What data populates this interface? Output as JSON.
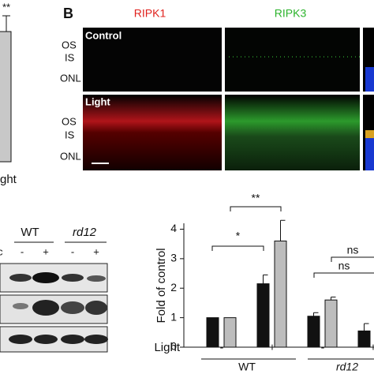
{
  "panel_a": {
    "significance": "**",
    "x_label": "ght"
  },
  "panel_b": {
    "letter": "B",
    "columns": [
      "RIPK1",
      "RIPK3"
    ],
    "rows": [
      {
        "label": "Control",
        "layers": [
          "OS",
          "IS",
          "ONL"
        ]
      },
      {
        "label": "Light",
        "layers": [
          "OS",
          "IS",
          "ONL"
        ]
      }
    ]
  },
  "blot": {
    "groups": [
      "WT",
      "rd12"
    ],
    "treatment": [
      "-",
      "+",
      "-",
      "+"
    ],
    "row_marker": "c"
  },
  "chart_data": {
    "type": "bar",
    "ylabel": "Fold of control",
    "xlabel": "Light",
    "categories": [
      "-",
      "+",
      "-",
      "+"
    ],
    "groups": [
      "WT",
      "rd12"
    ],
    "series": [
      {
        "color": "#111111",
        "values": [
          1,
          2.15,
          1.05,
          0.55
        ],
        "errors": [
          0,
          0.3,
          0.12,
          0.25
        ]
      },
      {
        "color": "#bdbdbd",
        "values": [
          1,
          3.6,
          1.6,
          null
        ],
        "errors": [
          0,
          0.7,
          0.1,
          null
        ]
      }
    ],
    "ylim": [
      0,
      4.2
    ],
    "yticks": [
      0,
      1,
      2,
      3,
      4
    ],
    "annotations": [
      "*",
      "**",
      "ns",
      "ns"
    ]
  }
}
